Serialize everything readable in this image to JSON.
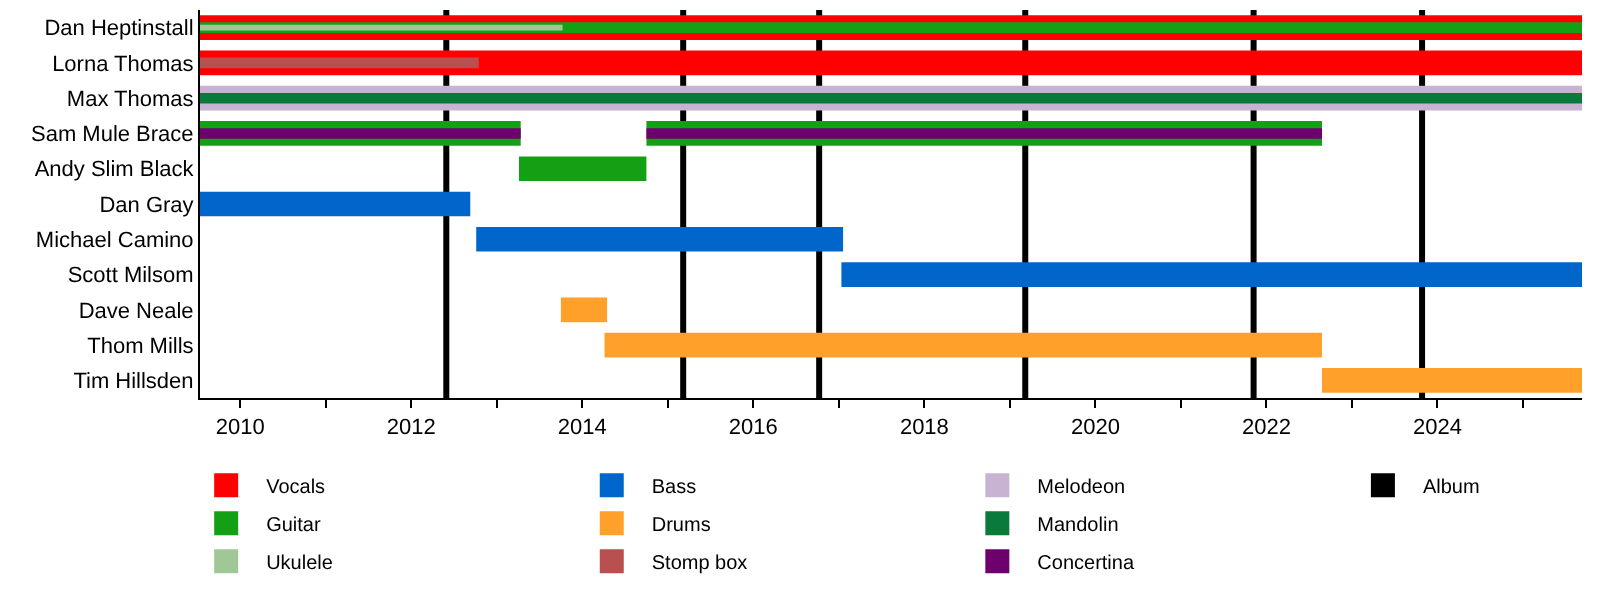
{
  "chart_data": {
    "type": "bar",
    "orientation": "horizontal",
    "categories": [
      "Dan Heptinstall",
      "Lorna Thomas",
      "Max Thomas",
      "Sam Mule Brace",
      "Andy Slim Black",
      "Dan Gray",
      "Michael Camino",
      "Scott Milsom",
      "Dave Neale",
      "Thom Mills",
      "Tim Hillsden"
    ],
    "series": [
      {
        "name": "Vocals",
        "color": "#ff0000",
        "base": [
          2009.53,
          2009.53,
          null,
          null,
          null,
          null,
          null,
          null,
          null,
          null,
          null
        ],
        "values": [
          16.16,
          16.16,
          null,
          null,
          null,
          null,
          null,
          null,
          null,
          null,
          null
        ]
      },
      {
        "name": "Guitar",
        "color": "#14a014",
        "base": [
          2009.53,
          null,
          null,
          2009.53,
          2013.26,
          null,
          null,
          null,
          null,
          null,
          null
        ],
        "values": [
          16.16,
          null,
          null,
          3.75,
          1.49,
          null,
          null,
          null,
          null,
          null,
          null
        ]
      },
      {
        "name": "Ukulele",
        "color": "#a0c896",
        "base": [
          2009.53,
          null,
          null,
          null,
          null,
          null,
          null,
          null,
          null,
          null,
          null
        ],
        "values": [
          4.24,
          null,
          null,
          null,
          null,
          null,
          null,
          null,
          null,
          null,
          null
        ]
      },
      {
        "name": "Bass",
        "color": "#0066cc",
        "base": [
          null,
          null,
          null,
          null,
          null,
          2009.53,
          2012.76,
          2017.03,
          null,
          null,
          null
        ],
        "values": [
          null,
          null,
          null,
          null,
          null,
          3.16,
          4.29,
          8.66,
          null,
          null,
          null
        ]
      },
      {
        "name": "Drums",
        "color": "#ffa02a",
        "base": [
          null,
          null,
          null,
          null,
          null,
          null,
          null,
          null,
          2013.75,
          2014.26,
          2022.65
        ],
        "values": [
          null,
          null,
          null,
          null,
          null,
          null,
          null,
          null,
          0.54,
          8.39,
          3.04
        ]
      },
      {
        "name": "Stomp box",
        "color": "#b85050",
        "base": [
          null,
          2009.53,
          null,
          null,
          null,
          null,
          null,
          null,
          null,
          null,
          null
        ],
        "values": [
          null,
          3.26,
          null,
          null,
          null,
          null,
          null,
          null,
          null,
          null,
          null
        ]
      },
      {
        "name": "Melodeon",
        "color": "#c8b4d2",
        "base": [
          null,
          null,
          2009.53,
          null,
          null,
          null,
          null,
          null,
          null,
          null,
          null
        ],
        "values": [
          null,
          null,
          16.16,
          null,
          null,
          null,
          null,
          null,
          null,
          null,
          null
        ]
      },
      {
        "name": "Mandolin",
        "color": "#0a7a3a",
        "base": [
          null,
          null,
          2009.53,
          null,
          null,
          null,
          null,
          null,
          null,
          null,
          null
        ],
        "values": [
          null,
          null,
          16.16,
          null,
          null,
          null,
          null,
          null,
          null,
          null,
          null
        ]
      },
      {
        "name": "Concertina",
        "color": "#6e006e",
        "base": [
          null,
          null,
          null,
          2009.53,
          null,
          null,
          null,
          null,
          null,
          null,
          null
        ],
        "values": [
          null,
          null,
          null,
          3.75,
          null,
          null,
          null,
          null,
          null,
          null,
          null
        ]
      },
      {
        "color": "#14a014",
        "base": [
          null,
          null,
          null,
          2014.75,
          null,
          null,
          null,
          null,
          null,
          null,
          null
        ],
        "values": [
          null,
          null,
          null,
          7.9,
          null,
          null,
          null,
          null,
          null,
          null,
          null
        ]
      },
      {
        "color": "#6e006e",
        "base": [
          null,
          null,
          null,
          2014.75,
          null,
          null,
          null,
          null,
          null,
          null,
          null
        ],
        "values": [
          null,
          null,
          null,
          7.9,
          null,
          null,
          null,
          null,
          null,
          null,
          null
        ]
      }
    ],
    "xlim": [
      2009.53,
      2025.69
    ],
    "xticks": [
      2010,
      {
        "value": 2011,
        "label": null
      },
      2012,
      {
        "value": 2013,
        "label": null
      },
      2014,
      {
        "value": 2015,
        "label": null
      },
      2016,
      {
        "value": 2017,
        "label": null
      },
      2018,
      {
        "value": 2019,
        "label": null
      },
      2020,
      {
        "value": 2021,
        "label": null
      },
      2022,
      {
        "value": 2023,
        "label": null
      },
      2024,
      {
        "value": 2025,
        "label": null
      }
    ],
    "ref_lines": [
      {
        "axis": "x",
        "value": 2012.41,
        "label": "Album",
        "color": "#000000"
      },
      {
        "axis": "x",
        "value": 2015.18,
        "color": "#000000"
      },
      {
        "axis": "x",
        "value": 2016.77,
        "color": "#000000"
      },
      {
        "axis": "x",
        "value": 2019.18,
        "color": "#000000"
      },
      {
        "axis": "x",
        "value": 2021.85,
        "color": "#000000"
      },
      {
        "axis": "x",
        "value": 2023.82,
        "color": "#000000"
      }
    ],
    "legend": "bottom"
  }
}
